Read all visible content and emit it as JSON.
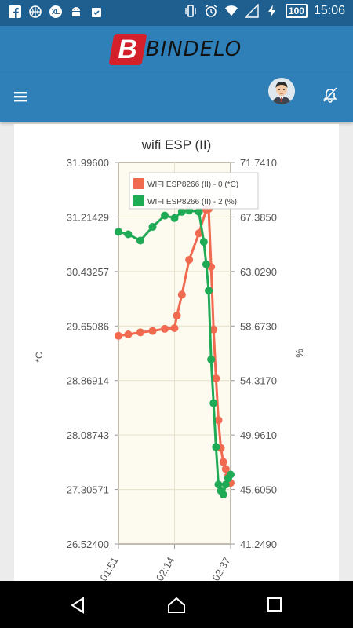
{
  "status_bar": {
    "icons": [
      "facebook-icon",
      "basketball-icon",
      "xl-icon",
      "android-icon",
      "clipboard-check-icon",
      "vibrate-icon",
      "alarm-icon",
      "wifi-icon",
      "signal-icon",
      "charging-icon"
    ],
    "xl_label": "XL",
    "battery": "100",
    "time": "15:06"
  },
  "brand": {
    "logo_letter": "B",
    "name": "BINDELO"
  },
  "toolbar": {
    "menu_icon": "hamburger-icon",
    "avatar": "user-avatar",
    "notifications_icon": "bell-off-icon"
  },
  "chart_data": {
    "type": "line",
    "title": "wifi ESP (II)",
    "ylabel_left": "*C",
    "ylabel_right": "%",
    "ylim_left": [
      26.524,
      31.996
    ],
    "ylim_right": [
      41.249,
      71.741
    ],
    "y_ticks_left": [
      "31.99600",
      "31.21429",
      "30.43257",
      "29.65086",
      "28.86914",
      "28.08743",
      "27.30571",
      "26.52400"
    ],
    "y_ticks_right": [
      "71.7410",
      "67.3850",
      "63.0290",
      "58.6730",
      "54.3170",
      "49.9610",
      "45.6050",
      "41.2490"
    ],
    "x_ticks": [
      "01:51",
      "02:14",
      "02:37"
    ],
    "legend_position": "top",
    "colors": {
      "temp": "#f06a50",
      "humidity": "#1faa55",
      "plot_bg": "#fdfaf0"
    },
    "series": [
      {
        "name": "WIFI ESP8266 (II) - 0 (*C)",
        "axis": "left",
        "x": [
          "01:51",
          "01:55",
          "02:00",
          "02:05",
          "02:10",
          "02:14",
          "02:15",
          "02:17",
          "02:20",
          "02:24",
          "02:27",
          "02:28",
          "02:29",
          "02:30",
          "02:31",
          "02:32",
          "02:33",
          "02:34",
          "02:35",
          "02:36",
          "02:37"
        ],
        "values": [
          29.51,
          29.53,
          29.56,
          29.58,
          29.61,
          29.62,
          29.8,
          30.1,
          30.6,
          30.98,
          31.32,
          31.33,
          30.5,
          29.6,
          28.9,
          28.3,
          27.9,
          27.7,
          27.6,
          27.5,
          27.4
        ]
      },
      {
        "name": "WIFI ESP8266 (II) - 2 (%)",
        "axis": "right",
        "x": [
          "01:51",
          "01:55",
          "02:00",
          "02:05",
          "02:10",
          "02:14",
          "02:17",
          "02:20",
          "02:24",
          "02:26",
          "02:27",
          "02:28",
          "02:29",
          "02:30",
          "02:31",
          "02:32",
          "02:33",
          "02:34",
          "02:35",
          "02:36",
          "02:37"
        ],
        "values": [
          66.2,
          66.0,
          65.5,
          66.6,
          67.5,
          67.3,
          67.8,
          67.9,
          67.8,
          65.4,
          63.6,
          61.5,
          56.0,
          52.5,
          49.0,
          46.0,
          45.5,
          45.2,
          46.0,
          46.5,
          46.8
        ]
      }
    ]
  }
}
